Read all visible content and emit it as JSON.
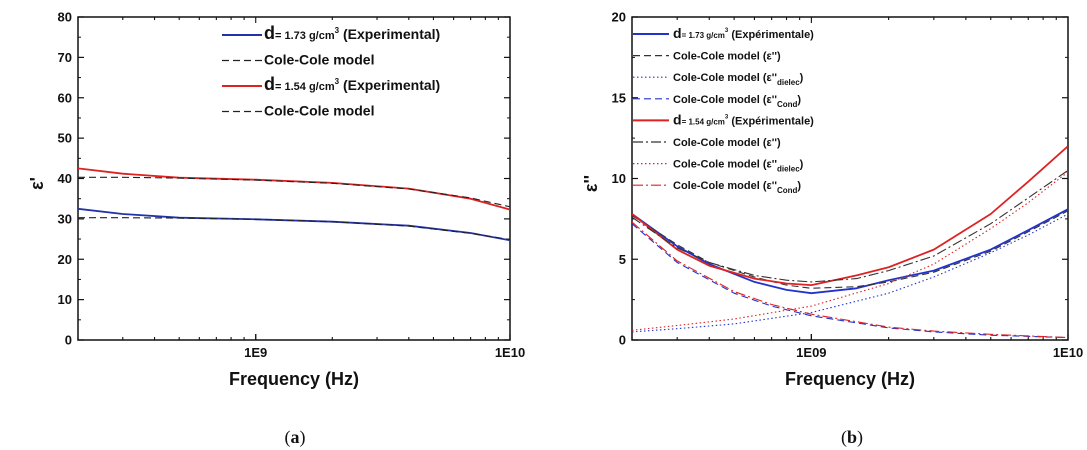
{
  "chart_data": [
    {
      "type": "line",
      "panel_label": "a",
      "xlabel": "Frequency (Hz)",
      "ylabel": "ε'",
      "xscale": "log",
      "xlim": [
        200000000,
        10000000000
      ],
      "ylim": [
        0,
        80
      ],
      "xticks": [
        {
          "value": 1000000000,
          "label": "1E9"
        },
        {
          "value": 10000000000,
          "label": "1E10"
        }
      ],
      "yticks": [
        0,
        10,
        20,
        30,
        40,
        50,
        60,
        70,
        80
      ],
      "legend_position": "top-right",
      "series": [
        {
          "name": "d= 1.73 g/cm³ (Experimental)",
          "legend_main": "d",
          "legend_small": "= 1.73 g/cm",
          "legend_sup": "3",
          "legend_rest": " (Experimental)",
          "color": "#2233aa",
          "style": "solid",
          "x": [
            200000000,
            300000000,
            500000000,
            1000000000,
            2000000000,
            4000000000,
            7000000000,
            10000000000
          ],
          "y": [
            32.5,
            31.2,
            30.3,
            29.9,
            29.3,
            28.3,
            26.5,
            24.7
          ]
        },
        {
          "name": "Cole-Cole model",
          "color": "#222222",
          "style": "dash",
          "x": [
            200000000,
            300000000,
            500000000,
            1000000000,
            2000000000,
            4000000000,
            7000000000,
            10000000000
          ],
          "y": [
            30.3,
            30.3,
            30.2,
            29.9,
            29.3,
            28.2,
            26.4,
            24.9
          ]
        },
        {
          "name": "d= 1.54 g/cm³ (Experimental)",
          "legend_main": "d",
          "legend_small": "= 1.54 g/cm",
          "legend_sup": "3",
          "legend_rest": " (Experimental)",
          "color": "#dd2222",
          "style": "solid",
          "x": [
            200000000,
            300000000,
            500000000,
            1000000000,
            2000000000,
            4000000000,
            7000000000,
            10000000000
          ],
          "y": [
            42.5,
            41.2,
            40.2,
            39.7,
            38.9,
            37.5,
            35.0,
            32.3
          ]
        },
        {
          "name": "Cole-Cole model",
          "color": "#222222",
          "style": "dash",
          "x": [
            200000000,
            300000000,
            500000000,
            1000000000,
            2000000000,
            4000000000,
            7000000000,
            10000000000
          ],
          "y": [
            40.3,
            40.3,
            40.1,
            39.6,
            38.8,
            37.4,
            35.2,
            33.0
          ]
        }
      ]
    },
    {
      "type": "line",
      "panel_label": "b",
      "xlabel": "Frequency (Hz)",
      "ylabel": "ε''",
      "xscale": "log",
      "xlim": [
        200000000,
        10000000000
      ],
      "ylim": [
        0,
        20
      ],
      "xticks": [
        {
          "value": 1000000000,
          "label": "1E09"
        },
        {
          "value": 10000000000,
          "label": "1E10"
        }
      ],
      "yticks": [
        0,
        5,
        10,
        15,
        20
      ],
      "legend_position": "top-left",
      "series": [
        {
          "name": "d= 1.73 g/cm³ (Expérimentale)",
          "legend_main": "d",
          "legend_small": "= 1.73 g/cm",
          "legend_sup": "3",
          "legend_rest": " (Expérimentale)",
          "color": "#2233cc",
          "style": "solid",
          "x": [
            200000000,
            300000000,
            400000000,
            600000000,
            800000000,
            1000000000,
            1500000000,
            2000000000,
            3000000000,
            5000000000,
            7000000000,
            10000000000
          ],
          "y": [
            7.8,
            5.8,
            4.7,
            3.6,
            3.1,
            2.9,
            3.2,
            3.7,
            4.3,
            5.6,
            6.8,
            8.1
          ]
        },
        {
          "name": "Cole-Cole model (ε'')",
          "legend_text": "Cole-Cole model (ε'')",
          "color": "#333333",
          "style": "dash",
          "x": [
            200000000,
            300000000,
            400000000,
            600000000,
            800000000,
            1000000000,
            1500000000,
            2000000000,
            3000000000,
            5000000000,
            7000000000,
            10000000000
          ],
          "y": [
            7.7,
            5.9,
            4.8,
            3.9,
            3.4,
            3.2,
            3.3,
            3.6,
            4.2,
            5.5,
            6.7,
            8.0
          ]
        },
        {
          "name": "Cole-Cole model (ε''dielec)",
          "legend_text": "Cole-Cole model (ε''",
          "legend_sub": "dielec",
          "legend_close": ")",
          "color": "#2233cc",
          "style": "dot",
          "x": [
            200000000,
            300000000,
            500000000,
            1000000000,
            2000000000,
            3000000000,
            5000000000,
            7000000000,
            10000000000
          ],
          "y": [
            0.5,
            0.7,
            1.0,
            1.7,
            2.9,
            3.9,
            5.4,
            6.5,
            7.8
          ]
        },
        {
          "name": "Cole-Cole model (ε''Cond)",
          "legend_text": "Cole-Cole model (ε''",
          "legend_sub": "Cond",
          "legend_close": ")",
          "color": "#2233cc",
          "style": "dash",
          "x": [
            200000000,
            300000000,
            500000000,
            700000000,
            1000000000,
            2000000000,
            3000000000,
            5000000000,
            10000000000
          ],
          "y": [
            7.2,
            4.8,
            2.9,
            2.1,
            1.5,
            0.75,
            0.5,
            0.3,
            0.15
          ]
        },
        {
          "name": "d= 1.54 g/cm³ (Expérimentale)",
          "legend_main": "d",
          "legend_small": "= 1.54 g/cm",
          "legend_sup": "3",
          "legend_rest": " (Expérimentale)",
          "color": "#dd2222",
          "style": "solid",
          "x": [
            200000000,
            300000000,
            400000000,
            600000000,
            800000000,
            1000000000,
            1500000000,
            2000000000,
            3000000000,
            5000000000,
            7000000000,
            10000000000
          ],
          "y": [
            7.8,
            5.6,
            4.6,
            3.8,
            3.5,
            3.4,
            4.0,
            4.5,
            5.6,
            7.8,
            9.8,
            12.0
          ]
        },
        {
          "name": "Cole-Cole model (ε'')",
          "legend_text": "Cole-Cole model (ε'')",
          "color": "#333333",
          "style": "dashdot",
          "x": [
            200000000,
            300000000,
            400000000,
            600000000,
            800000000,
            1000000000,
            1500000000,
            2000000000,
            3000000000,
            5000000000,
            7000000000,
            10000000000
          ],
          "y": [
            7.6,
            5.7,
            4.8,
            4.0,
            3.7,
            3.6,
            3.8,
            4.3,
            5.2,
            7.2,
            8.8,
            10.5
          ]
        },
        {
          "name": "Cole-Cole model (ε''dielec)",
          "legend_text": "Cole-Cole model (ε''",
          "legend_sub": "dielec",
          "legend_close": ")",
          "color": "#dd2222",
          "style": "dot",
          "x": [
            200000000,
            300000000,
            500000000,
            1000000000,
            2000000000,
            3000000000,
            5000000000,
            7000000000,
            10000000000
          ],
          "y": [
            0.6,
            0.9,
            1.3,
            2.1,
            3.5,
            4.7,
            6.9,
            8.5,
            10.4
          ]
        },
        {
          "name": "Cole-Cole model (ε''Cond)",
          "legend_text": "Cole-Cole model (ε''",
          "legend_sub": "Cond",
          "legend_close": ")",
          "color": "#dd2222",
          "style": "dashdot",
          "x": [
            200000000,
            300000000,
            500000000,
            700000000,
            1000000000,
            2000000000,
            3000000000,
            5000000000,
            10000000000
          ],
          "y": [
            7.3,
            4.9,
            3.0,
            2.2,
            1.6,
            0.8,
            0.55,
            0.35,
            0.15
          ]
        }
      ]
    }
  ]
}
